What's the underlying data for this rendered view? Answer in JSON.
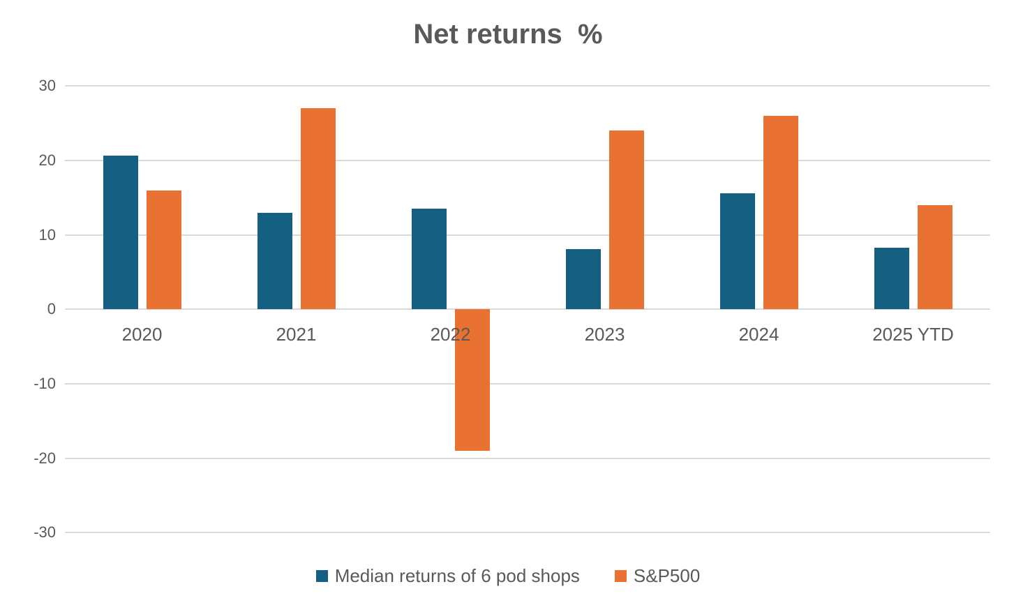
{
  "title": "Net returns  %",
  "colors": {
    "series_pods": "#156082",
    "series_sp500": "#E97132",
    "gridline": "#D9D9D9",
    "text": "#595959",
    "background": "#FFFFFF"
  },
  "legend": {
    "items": [
      {
        "label": "Median returns of 6 pod shops",
        "color": "#156082"
      },
      {
        "label": "S&P500",
        "color": "#E97132"
      }
    ]
  },
  "chart_data": {
    "type": "bar",
    "title": "Net returns  %",
    "categories": [
      "2020",
      "2021",
      "2022",
      "2023",
      "2024",
      "2025 YTD"
    ],
    "series": [
      {
        "name": "Median returns of 6 pod shops",
        "color": "#156082",
        "values": [
          20.7,
          13,
          13.5,
          8.1,
          15.6,
          8.3
        ]
      },
      {
        "name": "S&P500",
        "color": "#E97132",
        "values": [
          16,
          27,
          -19,
          24,
          26,
          14
        ]
      }
    ],
    "xlabel": "",
    "ylabel": "",
    "ylim": [
      -30,
      30
    ],
    "yticks": [
      30,
      20,
      10,
      0,
      -10,
      -20,
      -30
    ],
    "grid": true,
    "legend_position": "bottom"
  }
}
